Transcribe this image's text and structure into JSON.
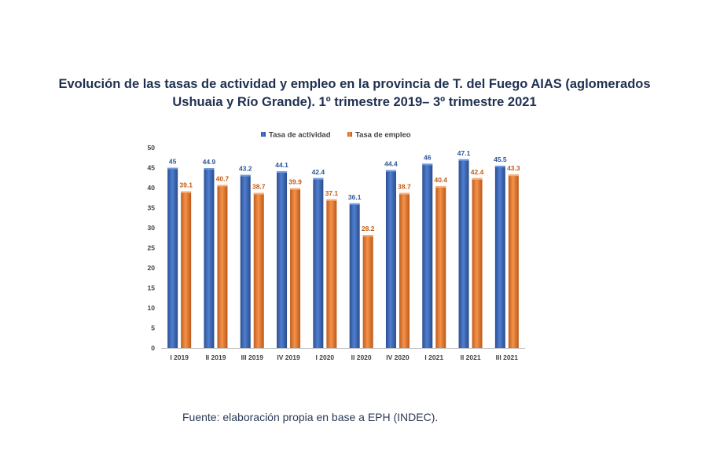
{
  "title": {
    "line1": "Evolución de las tasas de actividad y empleo en la provincia de T. del Fuego AIAS (aglomerados",
    "line2": "Ushuaia y Río Grande). 1º trimestre 2019– 3º trimestre 2021"
  },
  "source": "Fuente: elaboración propia en base a EPH (INDEC).",
  "colors": {
    "activity": "#4472c4",
    "employment": "#ed7d31",
    "activity_label": "#2f5597",
    "employment_label": "#c55a11"
  },
  "chart_data": {
    "type": "bar",
    "categories": [
      "I 2019",
      "II 2019",
      "III 2019",
      "IV 2019",
      "I 2020",
      "II 2020",
      "IV 2020",
      "I 2021",
      "II 2021",
      "III 2021"
    ],
    "series": [
      {
        "name": "Tasa de actividad",
        "values": [
          45,
          44.9,
          43.2,
          44.1,
          42.4,
          36.1,
          44.4,
          46,
          47.1,
          45.5
        ]
      },
      {
        "name": "Tasa de empleo",
        "values": [
          39.1,
          40.7,
          38.7,
          39.9,
          37.1,
          28.2,
          38.7,
          40.4,
          42.4,
          43.3
        ]
      }
    ],
    "ylim": [
      0,
      50
    ],
    "yticks": [
      0,
      5,
      10,
      15,
      20,
      25,
      30,
      35,
      40,
      45,
      50
    ],
    "legend_position": "top",
    "grid": false
  }
}
